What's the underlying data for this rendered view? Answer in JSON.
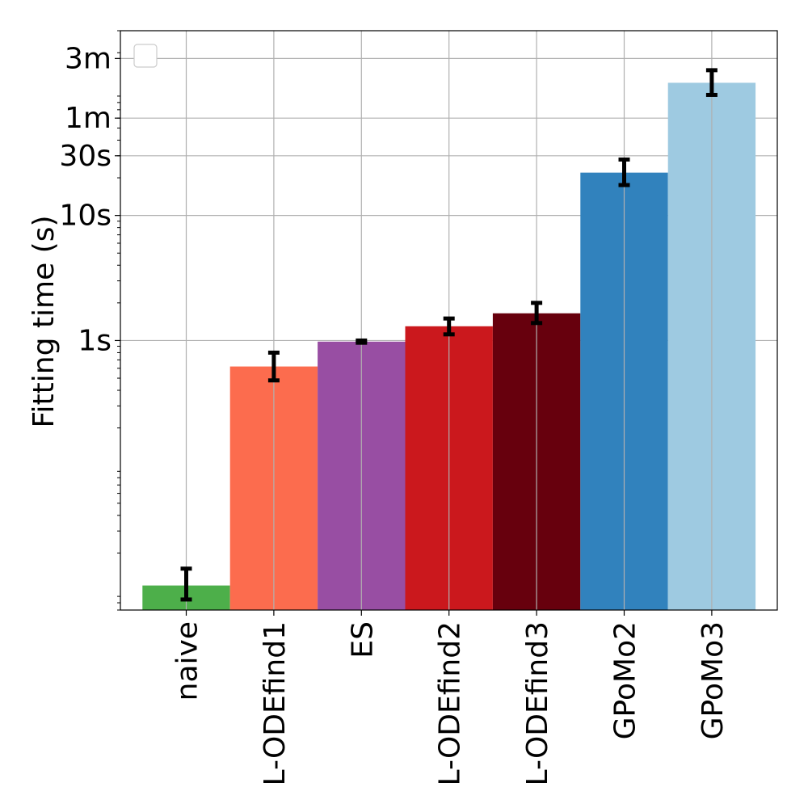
{
  "chart_data": {
    "type": "bar",
    "title": "",
    "xlabel": "",
    "ylabel": "Fitting time (s)",
    "y_scale": "log",
    "ylim": [
      0.007,
      300
    ],
    "grid": true,
    "legend": {
      "placement": "top-left",
      "entries": []
    },
    "categories": [
      "naive",
      "L-ODEfind1",
      "ES",
      "L-ODEfind2",
      "L-ODEfind3",
      "GPoMo2",
      "GPoMo3"
    ],
    "values": [
      0.011,
      0.62,
      0.98,
      1.3,
      1.65,
      22,
      115
    ],
    "error_low": [
      0.0085,
      0.48,
      0.96,
      1.12,
      1.38,
      17.5,
      92
    ],
    "error_high": [
      0.015,
      0.8,
      1.0,
      1.5,
      2.0,
      28,
      145
    ],
    "colors": [
      "#4daf4a",
      "#fc6c4e",
      "#984ea3",
      "#cb181d",
      "#67000d",
      "#3182bd",
      "#9ecae1"
    ],
    "y_ticks": [
      {
        "value": 1,
        "label": "1s"
      },
      {
        "value": 10,
        "label": "10s"
      },
      {
        "value": 30,
        "label": "30s"
      },
      {
        "value": 60,
        "label": "1m"
      },
      {
        "value": 180,
        "label": "3m"
      }
    ]
  }
}
